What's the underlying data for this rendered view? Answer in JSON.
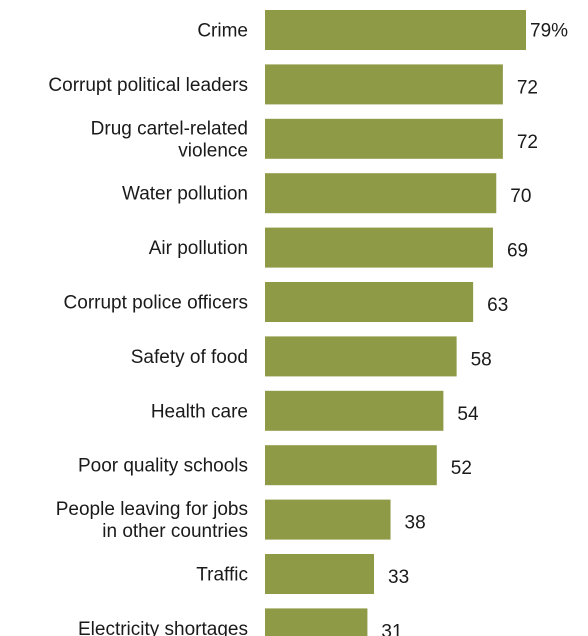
{
  "chart_data": {
    "type": "bar",
    "orientation": "horizontal",
    "title": "",
    "xlabel": "",
    "ylabel": "",
    "xlim": [
      0,
      100
    ],
    "grid": false,
    "legend": "none",
    "bar_color": "#8f9a47",
    "categories": [
      [
        "Crime"
      ],
      [
        "Corrupt political leaders"
      ],
      [
        "Drug cartel-related",
        "violence"
      ],
      [
        "Water pollution"
      ],
      [
        "Air pollution"
      ],
      [
        "Corrupt police officers"
      ],
      [
        "Safety of food"
      ],
      [
        "Health care"
      ],
      [
        "Poor quality schools"
      ],
      [
        "People leaving for jobs",
        "in other countries"
      ],
      [
        "Traffic"
      ],
      [
        "Electricity shortages"
      ]
    ],
    "values": [
      79,
      72,
      72,
      70,
      69,
      63,
      58,
      54,
      52,
      38,
      33,
      31
    ],
    "value_labels": [
      "79%",
      "72",
      "72",
      "70",
      "69",
      "63",
      "58",
      "54",
      "52",
      "38",
      "33",
      "31"
    ]
  }
}
